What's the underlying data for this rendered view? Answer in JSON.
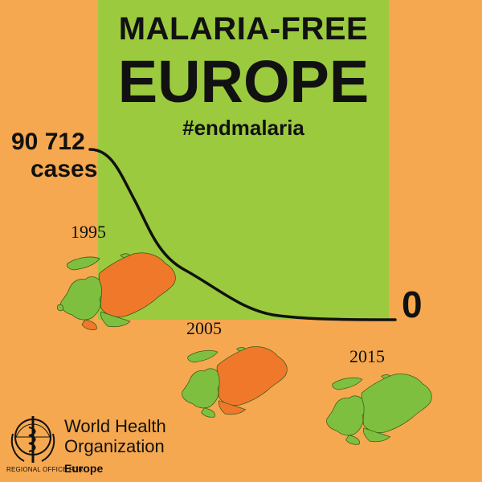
{
  "title": {
    "line1": "MALARIA-FREE",
    "line2": "EUROPE",
    "hashtag": "#endmalaria"
  },
  "cases": {
    "start_value": "90 712",
    "start_label": "cases",
    "end_value": "0"
  },
  "maps": [
    {
      "year": "1995",
      "state": "partially affected"
    },
    {
      "year": "2005",
      "state": "partially affected"
    },
    {
      "year": "2015",
      "state": "malaria-free"
    }
  ],
  "colors": {
    "background": "#f5a84f",
    "banner_green": "#9bca3f",
    "map_green": "#7fbf3f",
    "map_orange": "#f0782a",
    "text": "#111111"
  },
  "org": {
    "name_line1": "World Health",
    "name_line2": "Organization",
    "regional_label": "REGIONAL OFFICE FOR",
    "region": "Europe",
    "logo_icon": "who-emblem-icon"
  }
}
